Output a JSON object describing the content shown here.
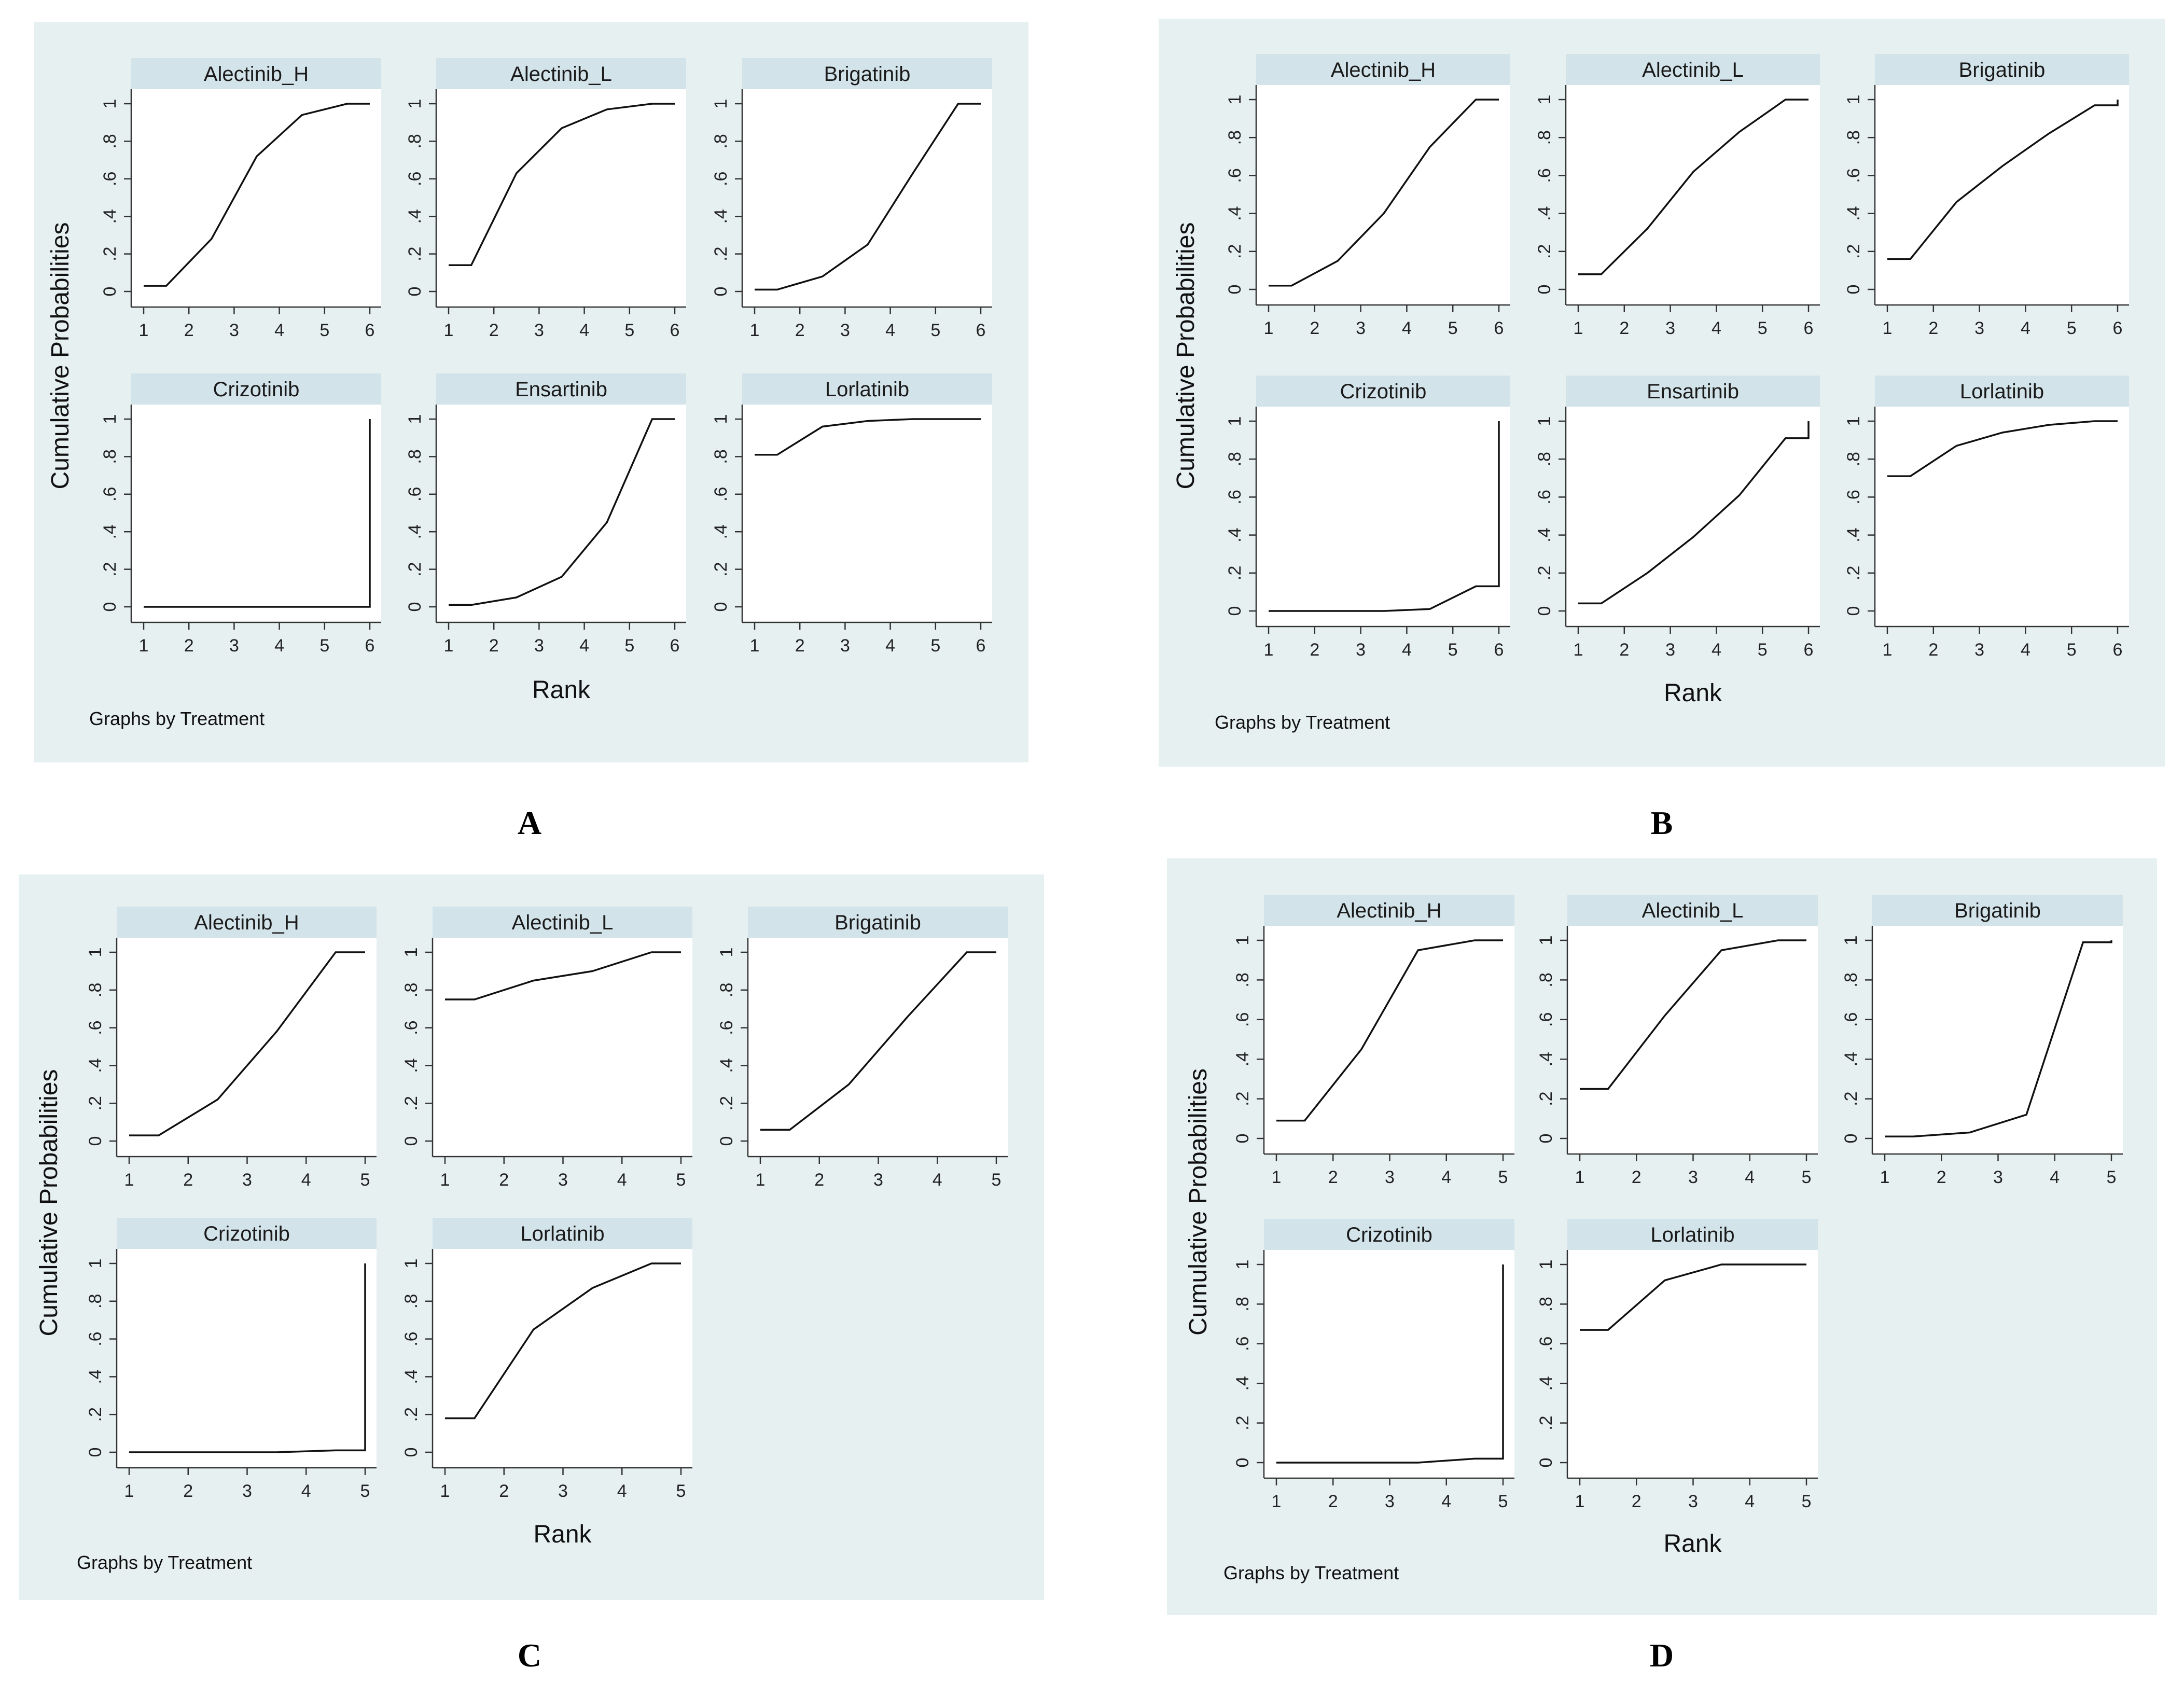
{
  "figure": {
    "panel_labels": [
      "A",
      "B",
      "C",
      "D"
    ]
  },
  "chart_data": [
    {
      "label": "A",
      "type": "line",
      "ylabel": "Cumulative Probabilities",
      "xlabel": "Rank",
      "note": "Graphs by Treatment",
      "xticks": [
        "1",
        "2",
        "3",
        "4",
        "5",
        "6"
      ],
      "yticks": [
        "0",
        ".2",
        ".4",
        ".6",
        ".8",
        "1"
      ],
      "xlim": [
        1,
        6
      ],
      "ylim": [
        0,
        1
      ],
      "subplots": [
        {
          "title": "Alectinib_H",
          "x": [
            1,
            1.5,
            2.5,
            3.5,
            4.5,
            5.5,
            6
          ],
          "y": [
            0.03,
            0.03,
            0.28,
            0.72,
            0.94,
            1.0,
            1.0
          ]
        },
        {
          "title": "Alectinib_L",
          "x": [
            1,
            1.5,
            2.5,
            3.5,
            4.5,
            5.5,
            6
          ],
          "y": [
            0.14,
            0.14,
            0.63,
            0.87,
            0.97,
            1.0,
            1.0
          ]
        },
        {
          "title": "Brigatinib",
          "x": [
            1,
            1.5,
            2.5,
            3.5,
            4.5,
            5.5,
            6
          ],
          "y": [
            0.01,
            0.01,
            0.08,
            0.25,
            0.63,
            1.0,
            1.0
          ]
        },
        {
          "title": "Crizotinib",
          "x": [
            1,
            1.5,
            2.5,
            3.5,
            4.5,
            5.5,
            6,
            6
          ],
          "y": [
            0.0,
            0.0,
            0.0,
            0.0,
            0.0,
            0.0,
            0.0,
            1.0
          ]
        },
        {
          "title": "Ensartinib",
          "x": [
            1,
            1.5,
            2.5,
            3.5,
            4.5,
            5.5,
            6
          ],
          "y": [
            0.01,
            0.01,
            0.05,
            0.16,
            0.45,
            1.0,
            1.0
          ]
        },
        {
          "title": "Lorlatinib",
          "x": [
            1,
            1.5,
            2.5,
            3.5,
            4.5,
            5.5,
            6
          ],
          "y": [
            0.81,
            0.81,
            0.96,
            0.99,
            1.0,
            1.0,
            1.0
          ]
        }
      ]
    },
    {
      "label": "B",
      "type": "line",
      "ylabel": "Cumulative Probabilities",
      "xlabel": "Rank",
      "note": "Graphs by Treatment",
      "xticks": [
        "1",
        "2",
        "3",
        "4",
        "5",
        "6"
      ],
      "yticks": [
        "0",
        ".2",
        ".4",
        ".6",
        ".8",
        "1"
      ],
      "xlim": [
        1,
        6
      ],
      "ylim": [
        0,
        1
      ],
      "subplots": [
        {
          "title": "Alectinib_H",
          "x": [
            1,
            1.5,
            2.5,
            3.5,
            4.5,
            5.5,
            6
          ],
          "y": [
            0.02,
            0.02,
            0.15,
            0.4,
            0.75,
            1.0,
            1.0
          ]
        },
        {
          "title": "Alectinib_L",
          "x": [
            1,
            1.5,
            2.5,
            3.5,
            4.5,
            5.5,
            6
          ],
          "y": [
            0.08,
            0.08,
            0.32,
            0.62,
            0.83,
            1.0,
            1.0
          ]
        },
        {
          "title": "Brigatinib",
          "x": [
            1,
            1.5,
            2.5,
            3.5,
            4.5,
            5.5,
            6,
            6
          ],
          "y": [
            0.16,
            0.16,
            0.46,
            0.65,
            0.82,
            0.97,
            0.97,
            1.0
          ]
        },
        {
          "title": "Crizotinib",
          "x": [
            1,
            1.5,
            2.5,
            3.5,
            4.5,
            5.5,
            6,
            6
          ],
          "y": [
            0.0,
            0.0,
            0.0,
            0.0,
            0.01,
            0.13,
            0.13,
            1.0
          ]
        },
        {
          "title": "Ensartinib",
          "x": [
            1,
            1.5,
            2.5,
            3.5,
            4.5,
            5.5,
            6,
            6
          ],
          "y": [
            0.04,
            0.04,
            0.2,
            0.39,
            0.61,
            0.91,
            0.91,
            1.0
          ]
        },
        {
          "title": "Lorlatinib",
          "x": [
            1,
            1.5,
            2.5,
            3.5,
            4.5,
            5.5,
            6
          ],
          "y": [
            0.71,
            0.71,
            0.87,
            0.94,
            0.98,
            1.0,
            1.0
          ]
        }
      ]
    },
    {
      "label": "C",
      "type": "line",
      "ylabel": "Cumulative Probabilities",
      "xlabel": "Rank",
      "note": "Graphs by Treatment",
      "xticks": [
        "1",
        "2",
        "3",
        "4",
        "5"
      ],
      "yticks": [
        "0",
        ".2",
        ".4",
        ".6",
        ".8",
        "1"
      ],
      "xlim": [
        1,
        5
      ],
      "ylim": [
        0,
        1
      ],
      "subplots": [
        {
          "title": "Alectinib_H",
          "x": [
            1,
            1.5,
            2.5,
            3.5,
            4.5,
            5
          ],
          "y": [
            0.03,
            0.03,
            0.22,
            0.58,
            1.0,
            1.0
          ]
        },
        {
          "title": "Alectinib_L",
          "x": [
            1,
            1.5,
            2.5,
            3.5,
            4.5,
            5
          ],
          "y": [
            0.75,
            0.75,
            0.85,
            0.9,
            1.0,
            1.0
          ]
        },
        {
          "title": "Brigatinib",
          "x": [
            1,
            1.5,
            2.5,
            3.5,
            4.5,
            5
          ],
          "y": [
            0.06,
            0.06,
            0.3,
            0.66,
            1.0,
            1.0
          ]
        },
        {
          "title": "Crizotinib",
          "x": [
            1,
            1.5,
            2.5,
            3.5,
            4.5,
            5,
            5
          ],
          "y": [
            0.0,
            0.0,
            0.0,
            0.0,
            0.01,
            0.01,
            1.0
          ]
        },
        {
          "title": "Lorlatinib",
          "x": [
            1,
            1.5,
            2.5,
            3.5,
            4.5,
            5
          ],
          "y": [
            0.18,
            0.18,
            0.65,
            0.87,
            1.0,
            1.0
          ]
        }
      ]
    },
    {
      "label": "D",
      "type": "line",
      "ylabel": "Cumulative Probabilities",
      "xlabel": "Rank",
      "note": "Graphs by Treatment",
      "xticks": [
        "1",
        "2",
        "3",
        "4",
        "5"
      ],
      "yticks": [
        "0",
        ".2",
        ".4",
        ".6",
        ".8",
        "1"
      ],
      "xlim": [
        1,
        5
      ],
      "ylim": [
        0,
        1
      ],
      "subplots": [
        {
          "title": "Alectinib_H",
          "x": [
            1,
            1.5,
            2.5,
            3.5,
            4.5,
            5
          ],
          "y": [
            0.09,
            0.09,
            0.45,
            0.95,
            1.0,
            1.0
          ]
        },
        {
          "title": "Alectinib_L",
          "x": [
            1,
            1.5,
            2.5,
            3.5,
            4.5,
            5
          ],
          "y": [
            0.25,
            0.25,
            0.62,
            0.95,
            1.0,
            1.0
          ]
        },
        {
          "title": "Brigatinib",
          "x": [
            1,
            1.5,
            2.5,
            3.5,
            4.5,
            5,
            5
          ],
          "y": [
            0.01,
            0.01,
            0.03,
            0.12,
            0.99,
            0.99,
            1.0
          ]
        },
        {
          "title": "Crizotinib",
          "x": [
            1,
            1.5,
            2.5,
            3.5,
            4.5,
            5,
            5
          ],
          "y": [
            0.0,
            0.0,
            0.0,
            0.0,
            0.02,
            0.02,
            1.0
          ]
        },
        {
          "title": "Lorlatinib",
          "x": [
            1,
            1.5,
            2.5,
            3.5,
            4.5,
            5
          ],
          "y": [
            0.67,
            0.67,
            0.92,
            1.0,
            1.0,
            1.0
          ]
        }
      ]
    }
  ]
}
